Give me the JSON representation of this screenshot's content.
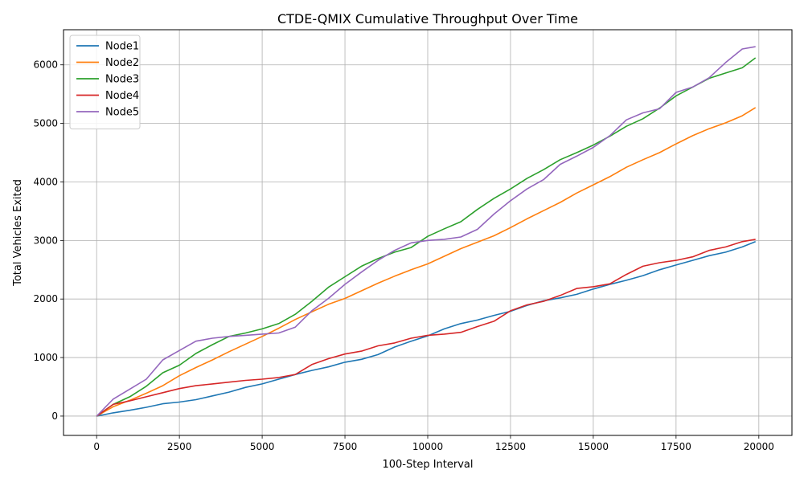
{
  "chart_data": {
    "type": "line",
    "title": "CTDE-QMIX Cumulative Throughput Over Time",
    "xlabel": "100-Step Interval",
    "ylabel": "Total Vehicles Exited",
    "xlim": [
      -1000,
      21000
    ],
    "ylim": [
      -330,
      6600
    ],
    "xticks": [
      0,
      2500,
      5000,
      7500,
      10000,
      12500,
      15000,
      17500,
      20000
    ],
    "xtick_labels": [
      "0",
      "2500",
      "5000",
      "7500",
      "10000",
      "12500",
      "15000",
      "17500",
      "20000"
    ],
    "yticks": [
      0,
      1000,
      2000,
      3000,
      4000,
      5000,
      6000
    ],
    "ytick_labels": [
      "0",
      "1000",
      "2000",
      "3000",
      "4000",
      "5000",
      "6000"
    ],
    "grid": true,
    "legend_position": "upper-left",
    "x": [
      0,
      500,
      1000,
      1500,
      2000,
      2500,
      3000,
      3500,
      4000,
      4500,
      5000,
      5500,
      6000,
      6500,
      7000,
      7500,
      8000,
      8500,
      9000,
      9500,
      10000,
      10500,
      11000,
      11500,
      12000,
      12500,
      13000,
      13500,
      14000,
      14500,
      15000,
      15500,
      16000,
      16500,
      17000,
      17500,
      18000,
      18500,
      19000,
      19500,
      19900
    ],
    "series": [
      {
        "name": "Node1",
        "color": "#1f77b4",
        "values": [
          0,
          55,
          100,
          150,
          210,
          240,
          280,
          345,
          410,
          490,
          550,
          630,
          710,
          780,
          840,
          920,
          970,
          1050,
          1180,
          1280,
          1370,
          1490,
          1580,
          1640,
          1720,
          1790,
          1890,
          1970,
          2020,
          2080,
          2170,
          2250,
          2320,
          2400,
          2500,
          2580,
          2660,
          2740,
          2800,
          2890,
          2980
        ]
      },
      {
        "name": "Node2",
        "color": "#ff7f0e",
        "values": [
          0,
          160,
          270,
          390,
          520,
          690,
          830,
          960,
          1100,
          1230,
          1360,
          1500,
          1650,
          1780,
          1910,
          2010,
          2140,
          2270,
          2390,
          2500,
          2600,
          2730,
          2860,
          2970,
          3080,
          3220,
          3370,
          3510,
          3650,
          3810,
          3950,
          4090,
          4250,
          4380,
          4500,
          4650,
          4790,
          4910,
          5010,
          5130,
          5270
        ]
      },
      {
        "name": "Node3",
        "color": "#2ca02c",
        "values": [
          0,
          200,
          330,
          510,
          740,
          870,
          1070,
          1220,
          1360,
          1420,
          1490,
          1580,
          1740,
          1960,
          2200,
          2380,
          2560,
          2690,
          2800,
          2880,
          3070,
          3200,
          3320,
          3530,
          3720,
          3880,
          4060,
          4210,
          4380,
          4500,
          4630,
          4780,
          4950,
          5080,
          5260,
          5470,
          5620,
          5770,
          5860,
          5950,
          6120
        ]
      },
      {
        "name": "Node4",
        "color": "#d62728",
        "values": [
          0,
          200,
          260,
          330,
          400,
          470,
          520,
          550,
          580,
          610,
          630,
          660,
          710,
          880,
          980,
          1060,
          1110,
          1200,
          1250,
          1330,
          1380,
          1400,
          1430,
          1530,
          1620,
          1800,
          1900,
          1960,
          2060,
          2180,
          2210,
          2260,
          2420,
          2560,
          2620,
          2660,
          2720,
          2830,
          2890,
          2980,
          3020
        ]
      },
      {
        "name": "Node5",
        "color": "#9467bd",
        "values": [
          0,
          290,
          460,
          630,
          960,
          1120,
          1280,
          1330,
          1360,
          1380,
          1400,
          1420,
          1520,
          1800,
          2010,
          2250,
          2460,
          2660,
          2830,
          2960,
          3000,
          3020,
          3060,
          3190,
          3450,
          3680,
          3880,
          4040,
          4300,
          4440,
          4590,
          4790,
          5060,
          5180,
          5250,
          5530,
          5620,
          5780,
          6040,
          6270,
          6310
        ]
      }
    ]
  }
}
